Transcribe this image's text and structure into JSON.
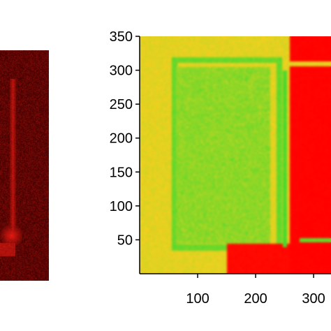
{
  "colors": {
    "low": "#ff0000",
    "mid": "#ffd21e",
    "high": "#00dc32",
    "left_panel_base": "#3c0000",
    "left_panel_glow": "#ff1e14"
  },
  "chart_data": [
    {
      "type": "image",
      "panel": "left-fluorescence",
      "colormap": "black-red",
      "title": "",
      "xlabel": "",
      "ylabel": ""
    },
    {
      "type": "heatmap",
      "colormap": [
        "red",
        "yellow",
        "green"
      ],
      "title": "",
      "xlabel": "",
      "ylabel": "",
      "xlim": [
        0,
        330
      ],
      "ylim": [
        0,
        350
      ],
      "x_ticks": [
        100,
        200,
        300
      ],
      "x_tick_labels": [
        "100",
        "200",
        "300"
      ],
      "y_ticks": [
        50,
        100,
        150,
        200,
        250,
        300,
        350
      ],
      "y_tick_labels": [
        "50",
        "100",
        "150",
        "200",
        "250",
        "300",
        "350"
      ],
      "regions": [
        {
          "shape": "background",
          "level": 0.55
        },
        {
          "shape": "rounded-rect-outline",
          "x": [
            55,
            245
          ],
          "y": [
            35,
            320
          ],
          "level": 0.8
        },
        {
          "shape": "rounded-rect",
          "x": [
            62,
            225
          ],
          "y": [
            45,
            305
          ],
          "level": 0.72
        },
        {
          "shape": "rect",
          "x": [
            258,
            330
          ],
          "y": [
            0,
            350
          ],
          "level": 0.0
        },
        {
          "shape": "rect",
          "x": [
            150,
            258
          ],
          "y": [
            0,
            45
          ],
          "level": 0.02
        },
        {
          "shape": "line-vertical",
          "x": 250,
          "y": [
            40,
            300
          ],
          "level": 0.85
        },
        {
          "shape": "line-horizontal",
          "x": [
            245,
            330
          ],
          "y": 310,
          "level": 0.55
        },
        {
          "shape": "line-horizontal",
          "x": [
            275,
            330
          ],
          "y": 50,
          "level": 0.8
        }
      ]
    }
  ]
}
